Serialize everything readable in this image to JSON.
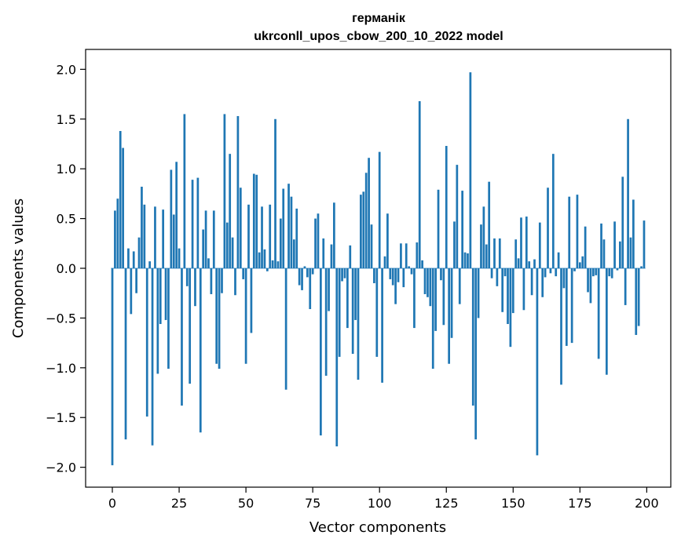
{
  "chart_data": {
    "type": "bar",
    "title": "германік",
    "subtitle": "ukrconll_upos_cbow_200_10_2022 model",
    "xlabel": "Vector components",
    "ylabel": "Components values",
    "xlim": [
      -10,
      209
    ],
    "ylim": [
      -2.2,
      2.2
    ],
    "xticks": [
      0,
      25,
      50,
      75,
      100,
      125,
      150,
      175,
      200
    ],
    "xtick_labels": [
      "0",
      "25",
      "50",
      "75",
      "100",
      "125",
      "150",
      "175",
      "200"
    ],
    "yticks": [
      -2.0,
      -1.5,
      -1.0,
      -0.5,
      0.0,
      0.5,
      1.0,
      1.5,
      2.0
    ],
    "ytick_labels": [
      "−2.0",
      "−1.5",
      "−1.0",
      "−0.5",
      "0.0",
      "0.5",
      "1.0",
      "1.5",
      "2.0"
    ],
    "grid": false,
    "bar_color": "#1f77b4",
    "x": [
      0,
      1,
      2,
      3,
      4,
      5,
      6,
      7,
      8,
      9,
      10,
      11,
      12,
      13,
      14,
      15,
      16,
      17,
      18,
      19,
      20,
      21,
      22,
      23,
      24,
      25,
      26,
      27,
      28,
      29,
      30,
      31,
      32,
      33,
      34,
      35,
      36,
      37,
      38,
      39,
      40,
      41,
      42,
      43,
      44,
      45,
      46,
      47,
      48,
      49,
      50,
      51,
      52,
      53,
      54,
      55,
      56,
      57,
      58,
      59,
      60,
      61,
      62,
      63,
      64,
      65,
      66,
      67,
      68,
      69,
      70,
      71,
      72,
      73,
      74,
      75,
      76,
      77,
      78,
      79,
      80,
      81,
      82,
      83,
      84,
      85,
      86,
      87,
      88,
      89,
      90,
      91,
      92,
      93,
      94,
      95,
      96,
      97,
      98,
      99,
      100,
      101,
      102,
      103,
      104,
      105,
      106,
      107,
      108,
      109,
      110,
      111,
      112,
      113,
      114,
      115,
      116,
      117,
      118,
      119,
      120,
      121,
      122,
      123,
      124,
      125,
      126,
      127,
      128,
      129,
      130,
      131,
      132,
      133,
      134,
      135,
      136,
      137,
      138,
      139,
      140,
      141,
      142,
      143,
      144,
      145,
      146,
      147,
      148,
      149,
      150,
      151,
      152,
      153,
      154,
      155,
      156,
      157,
      158,
      159,
      160,
      161,
      162,
      163,
      164,
      165,
      166,
      167,
      168,
      169,
      170,
      171,
      172,
      173,
      174,
      175,
      176,
      177,
      178,
      179,
      180,
      181,
      182,
      183,
      184,
      185,
      186,
      187,
      188,
      189,
      190,
      191,
      192,
      193,
      194,
      195,
      196,
      197,
      198,
      199
    ],
    "values": [
      -1.98,
      0.58,
      0.7,
      1.38,
      1.21,
      -1.72,
      0.2,
      -0.46,
      0.17,
      -0.25,
      0.31,
      0.82,
      0.64,
      -1.49,
      0.07,
      -1.78,
      0.62,
      -1.06,
      -0.56,
      0.59,
      -0.52,
      -1.01,
      0.99,
      0.54,
      1.07,
      0.2,
      -1.38,
      1.55,
      -0.18,
      -1.16,
      0.89,
      -0.38,
      0.91,
      -1.65,
      0.39,
      0.58,
      0.1,
      -0.26,
      0.58,
      -0.96,
      -1.01,
      -0.25,
      1.55,
      0.46,
      1.15,
      0.31,
      -0.27,
      1.53,
      0.81,
      -0.11,
      -0.96,
      0.64,
      -0.65,
      0.95,
      0.94,
      0.16,
      0.62,
      0.19,
      -0.03,
      0.64,
      0.08,
      1.5,
      0.07,
      0.5,
      0.8,
      -1.22,
      0.85,
      0.72,
      0.29,
      0.6,
      -0.17,
      -0.22,
      0.02,
      -0.09,
      -0.41,
      -0.06,
      0.5,
      0.55,
      -1.68,
      0.3,
      -1.08,
      -0.43,
      0.24,
      0.66,
      -1.79,
      -0.89,
      -0.13,
      -0.1,
      -0.6,
      0.23,
      -0.86,
      -0.52,
      -1.12,
      0.74,
      0.77,
      0.96,
      1.11,
      0.44,
      -0.15,
      -0.89,
      1.17,
      -1.15,
      0.12,
      0.55,
      -0.11,
      -0.17,
      -0.36,
      -0.14,
      0.25,
      -0.19,
      0.25,
      0.02,
      -0.06,
      -0.6,
      0.26,
      1.68,
      0.08,
      -0.26,
      -0.29,
      -0.38,
      -1.01,
      -0.63,
      0.79,
      -0.12,
      -0.57,
      1.23,
      -0.96,
      -0.7,
      0.47,
      1.04,
      -0.36,
      0.78,
      0.16,
      0.15,
      1.97,
      -1.38,
      -1.72,
      -0.5,
      0.44,
      0.62,
      0.24,
      0.87,
      -0.1,
      0.3,
      -0.18,
      0.3,
      -0.44,
      -0.08,
      -0.56,
      -0.79,
      -0.45,
      0.29,
      0.1,
      0.51,
      -0.42,
      0.52,
      0.07,
      -0.27,
      0.09,
      -1.88,
      0.46,
      -0.29,
      -0.09,
      0.81,
      -0.05,
      1.15,
      -0.08,
      0.16,
      -1.17,
      -0.2,
      -0.78,
      0.72,
      -0.75,
      -0.03,
      0.74,
      0.06,
      0.12,
      0.42,
      -0.24,
      -0.35,
      -0.08,
      -0.07,
      -0.91,
      0.45,
      0.29,
      -1.07,
      -0.08,
      -0.1,
      0.47,
      -0.02,
      0.27,
      0.92,
      -0.37,
      1.5,
      0.31,
      0.69,
      -0.67,
      -0.58,
      0.02,
      0.48
    ]
  }
}
